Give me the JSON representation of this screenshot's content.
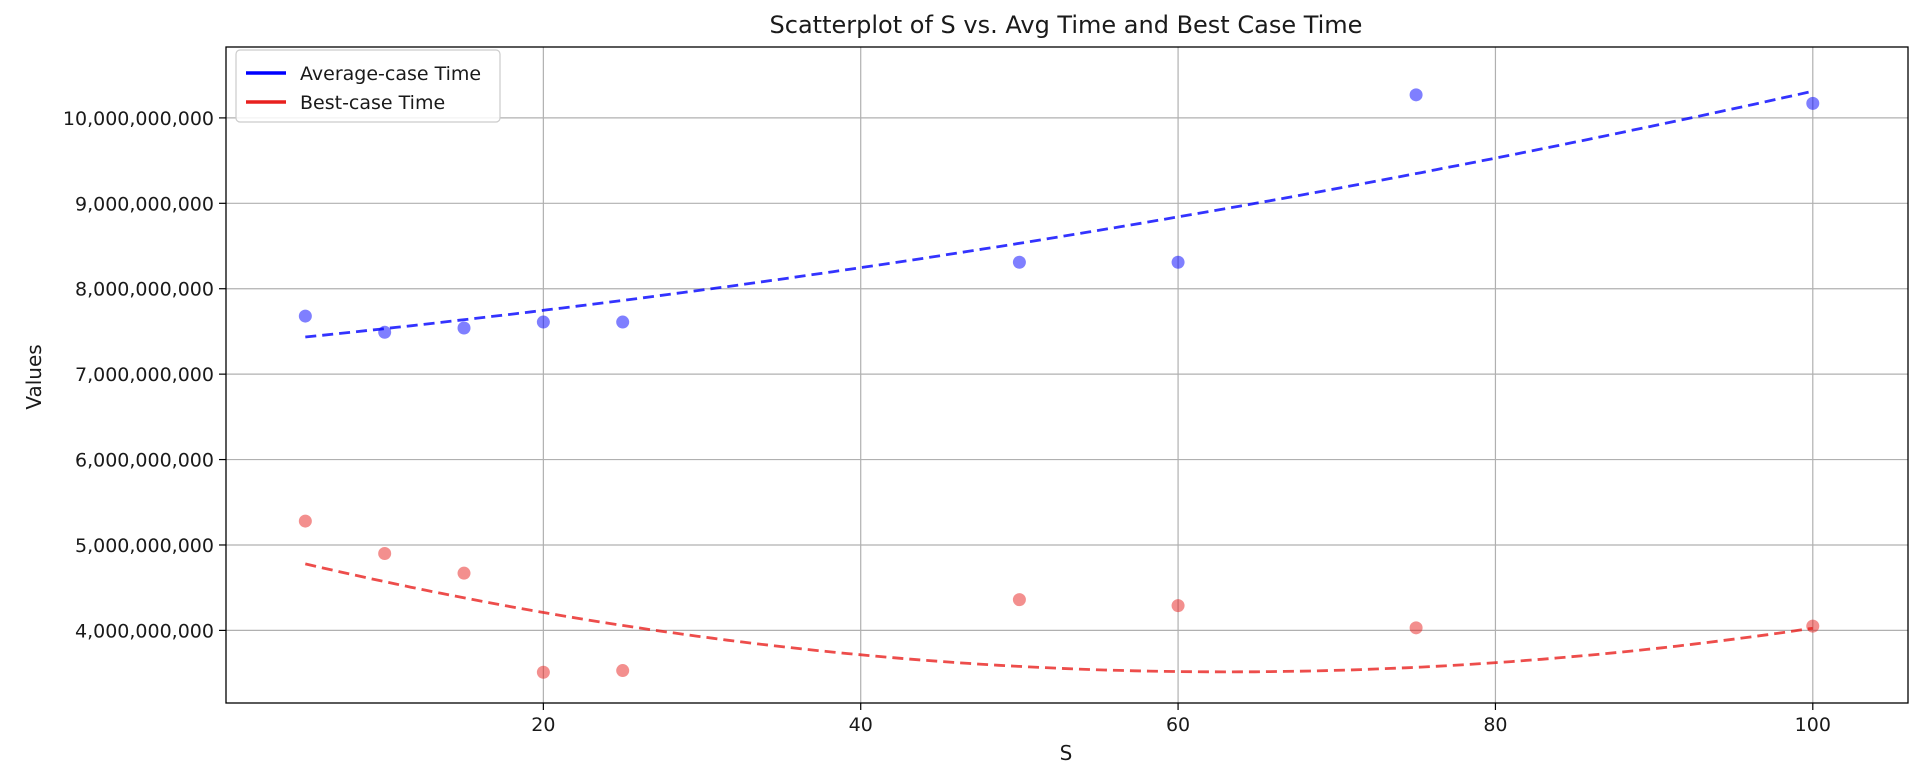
{
  "chart_data": {
    "type": "scatter",
    "title": "Scatterplot of S vs. Avg Time and Best Case Time",
    "xlabel": "S",
    "ylabel": "Values",
    "xlim": [
      0,
      106
    ],
    "ylim": [
      3150000000,
      10830000000
    ],
    "xticks": [
      20,
      40,
      60,
      80,
      100
    ],
    "yticks": [
      4000000000,
      5000000000,
      6000000000,
      7000000000,
      8000000000,
      9000000000,
      10000000000
    ],
    "grid": true,
    "legend_position": "top-left",
    "series": [
      {
        "name": "Average-case Time",
        "color": "#0000ff",
        "points_x": [
          5,
          10,
          15,
          20,
          25,
          50,
          60,
          75,
          100
        ],
        "points_y": [
          7680000000,
          7490000000,
          7540000000,
          7610000000,
          7610000000,
          8310000000,
          8310000000,
          10270000000,
          10170000000
        ],
        "trend_coeffs": [
          7342000000,
          17900000,
          118000
        ],
        "trend_range": [
          5,
          100
        ]
      },
      {
        "name": "Best-case Time",
        "color": "#e8201e",
        "points_x": [
          5,
          10,
          15,
          20,
          25,
          50,
          60,
          75,
          100
        ],
        "points_y": [
          5280000000,
          4900000000,
          4670000000,
          3510000000,
          3530000000,
          4360000000,
          4290000000,
          4030000000,
          4050000000
        ],
        "trend_coeffs": [
          5006000000,
          -47300000,
          375000
        ],
        "trend_range": [
          5,
          100
        ]
      }
    ]
  }
}
